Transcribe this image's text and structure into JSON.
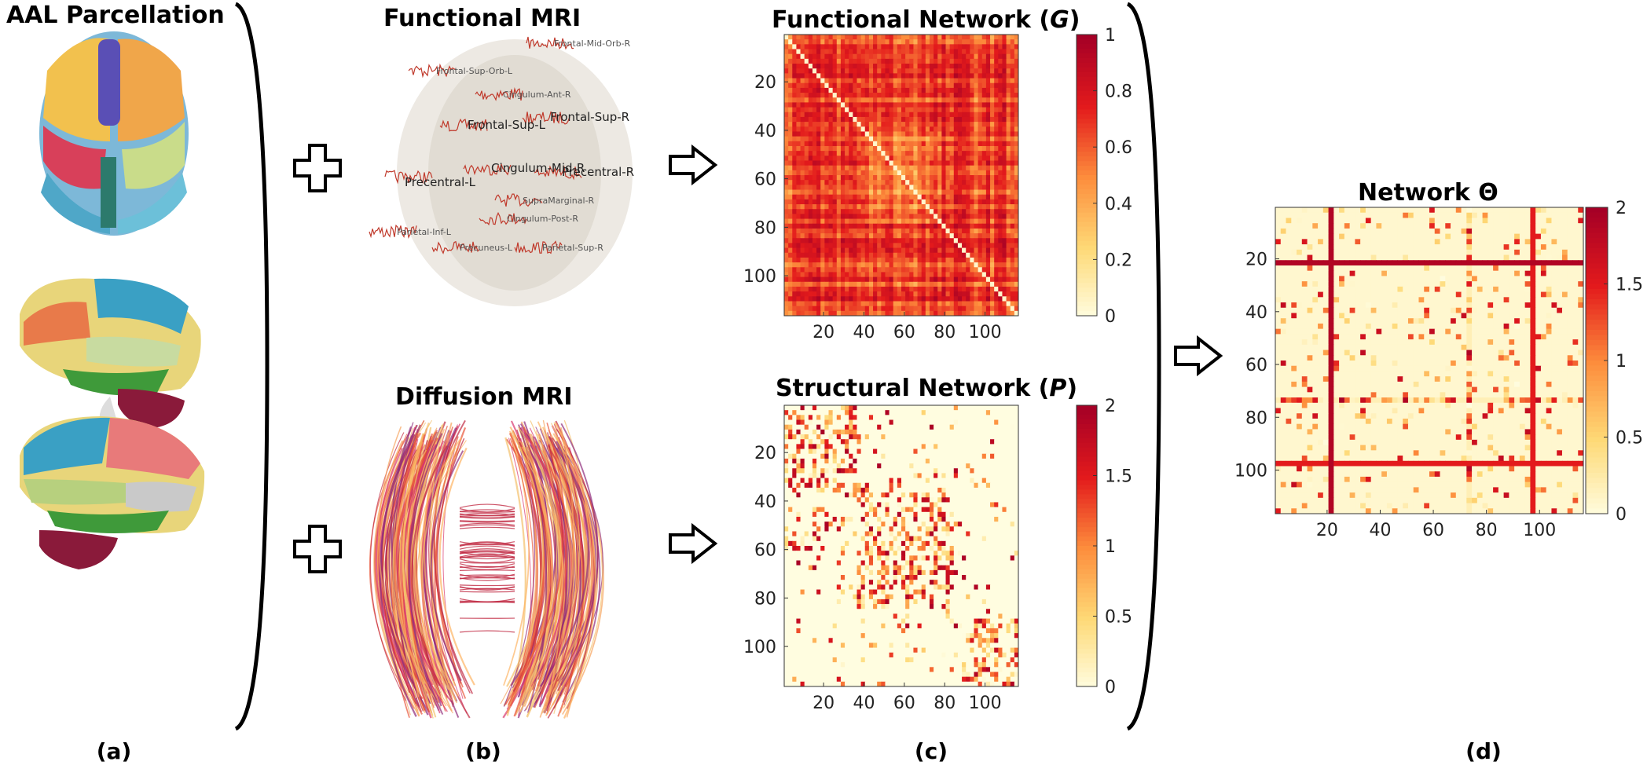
{
  "panels": {
    "a": {
      "title": "AAL Parcellation",
      "label": "(a)"
    },
    "b": {
      "fmri_title": "Functional MRI",
      "dmri_title": "Diffusion MRI",
      "label": "(b)",
      "region_labels": [
        "Frontal-Mid-Orb-R",
        "Frontal-Sup-Orb-L",
        "Cingulum-Ant-R",
        "Frontal-Sup-L",
        "Frontal-Sup-R",
        "Cingulum-Mid-R",
        "Precentral-R",
        "Precentral-L",
        "SupraMarginal-R",
        "Cingulum-Post-R",
        "Parietal-Inf-L",
        "Precuneus-L",
        "Parietal-Sup-R"
      ]
    },
    "c": {
      "label": "(c)",
      "functional": {
        "title_prefix": "Functional Network (",
        "title_symbol": "G",
        "title_suffix": ")"
      },
      "structural": {
        "title_prefix": "Structural Network (",
        "title_symbol": "P",
        "title_suffix": ")"
      }
    },
    "d": {
      "title": "Network Θ",
      "label": "(d)"
    }
  },
  "chart_data": [
    {
      "type": "heatmap",
      "name": "Functional Network (G)",
      "matrix_size": 116,
      "x_ticks": [
        20,
        40,
        60,
        80,
        100
      ],
      "y_ticks": [
        20,
        40,
        60,
        80,
        100
      ],
      "colorbar_ticks": [
        "0",
        "0.2",
        "0.4",
        "0.6",
        "0.8",
        "1"
      ],
      "clim": [
        0,
        1
      ],
      "colormap": [
        "#fffde0",
        "#fed976",
        "#fd8d3c",
        "#e31a1c",
        "#a50026"
      ]
    },
    {
      "type": "heatmap",
      "name": "Structural Network (P)",
      "matrix_size": 116,
      "x_ticks": [
        20,
        40,
        60,
        80,
        100
      ],
      "y_ticks": [
        20,
        40,
        60,
        80,
        100
      ],
      "colorbar_ticks": [
        "0",
        "0.5",
        "1",
        "1.5",
        "2"
      ],
      "clim": [
        0,
        2
      ],
      "colormap": [
        "#fffde0",
        "#fed976",
        "#fd8d3c",
        "#e31a1c",
        "#a50026"
      ]
    },
    {
      "type": "heatmap",
      "name": "Network Θ",
      "matrix_size": 116,
      "x_ticks": [
        20,
        40,
        60,
        80,
        100
      ],
      "y_ticks": [
        20,
        40,
        60,
        80,
        100
      ],
      "colorbar_ticks": [
        "0",
        "0.5",
        "1",
        "1.5",
        "2"
      ],
      "clim": [
        0,
        2
      ],
      "colormap": [
        "#fffde0",
        "#fed976",
        "#fd8d3c",
        "#e31a1c",
        "#a50026"
      ]
    }
  ]
}
